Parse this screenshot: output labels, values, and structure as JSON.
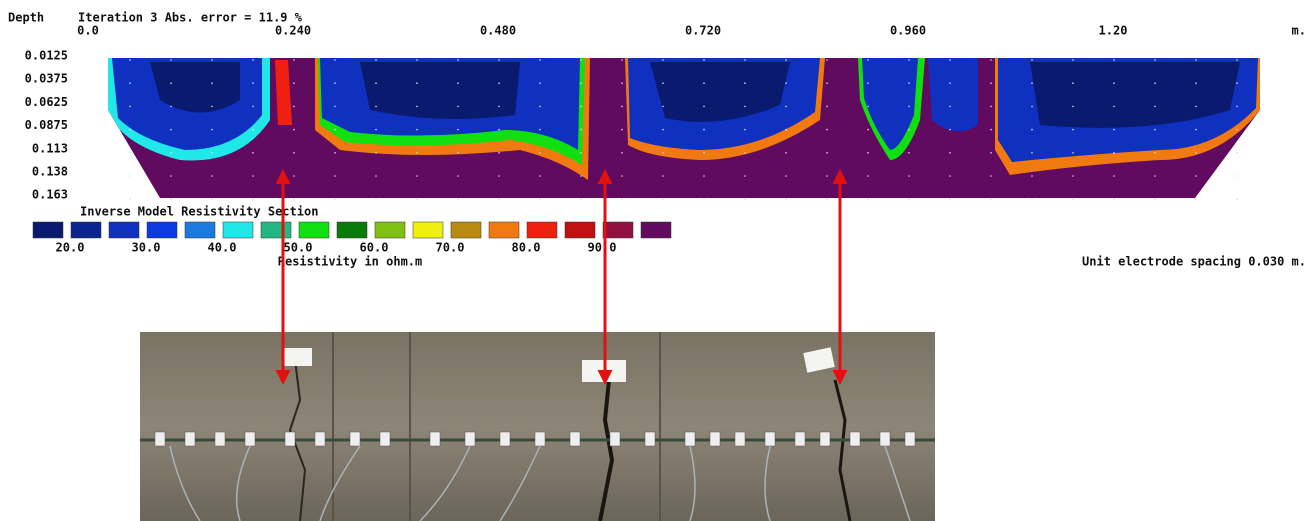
{
  "header": {
    "depth_label": "Depth",
    "title": "Iteration 3 Abs. error = 11.9 %",
    "unit": "m."
  },
  "x_ticks": [
    "0.0",
    "0.240",
    "0.480",
    "0.720",
    "0.960",
    "1.20"
  ],
  "depth_ticks": [
    "0.0125",
    "0.0375",
    "0.0625",
    "0.0875",
    "0.113",
    "0.138",
    "0.163"
  ],
  "legend": {
    "title": "Inverse Model Resistivity Section",
    "colors": [
      "#0a1a6e",
      "#0a2590",
      "#1030c0",
      "#0a3ae0",
      "#1a7ae0",
      "#20e8e8",
      "#20b880",
      "#10e010",
      "#0a7a0a",
      "#80c010",
      "#f0f010",
      "#b88a10",
      "#f07a10",
      "#f02010",
      "#c01010",
      "#901040",
      "#600a60"
    ],
    "labels": [
      "20.0",
      "30.0",
      "40.0",
      "50.0",
      "60.0",
      "70.0",
      "80.0",
      "90.0"
    ],
    "unit": "Resistivity in ohm.m"
  },
  "footnote": "Unit electrode spacing 0.030 m."
}
